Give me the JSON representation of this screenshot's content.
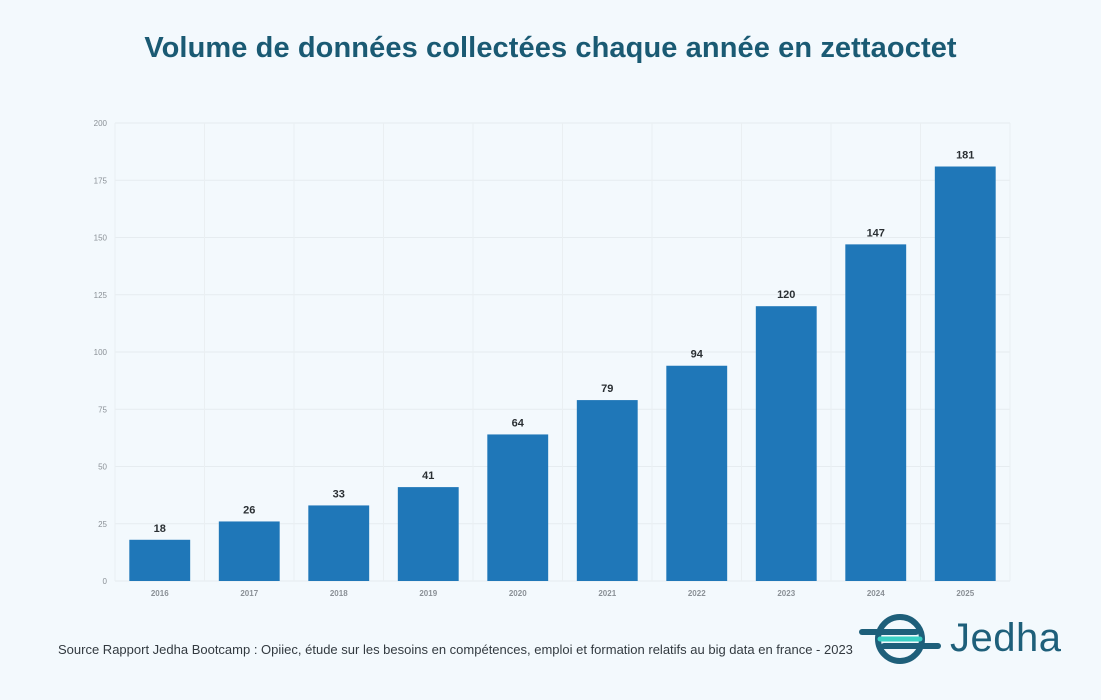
{
  "title": "Volume de données collectées chaque année en zettaoctet",
  "source": "Source Rapport Jedha Bootcamp : Opiiec, étude sur les besoins en compétences, emploi et formation relatifs au big data en france - 2023",
  "logo": {
    "text": "Jedha"
  },
  "colors": {
    "bar": "#1f77b8",
    "title": "#1a5a73",
    "background": "#f3f9fd",
    "logo": "#1e5f7a",
    "logo_accent": "#3ad0c4"
  },
  "chart_data": {
    "type": "bar",
    "title": "Volume de données collectées chaque année en zettaoctet",
    "categories": [
      "2016",
      "2017",
      "2018",
      "2019",
      "2020",
      "2021",
      "2022",
      "2023",
      "2024",
      "2025"
    ],
    "values": [
      18,
      26,
      33,
      41,
      64,
      79,
      94,
      120,
      147,
      181
    ],
    "yticks": [
      0,
      25,
      50,
      75,
      100,
      125,
      150,
      175,
      200
    ],
    "ylim": [
      0,
      200
    ],
    "xlabel": "",
    "ylabel": "",
    "grid": true,
    "data_labels": true
  }
}
